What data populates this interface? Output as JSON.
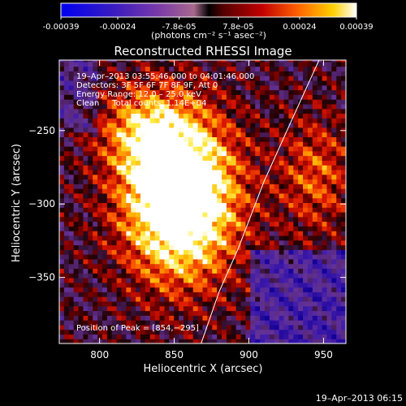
{
  "colorbar": {
    "tick_labels": [
      "-0.00039",
      "-0.00024",
      "-7.8e-05",
      "7.8e-05",
      "0.00024",
      "0.00039"
    ],
    "tick_values": [
      -0.00039,
      -0.00024,
      -7.8e-05,
      7.8e-05,
      0.00024,
      0.00039
    ],
    "range": [
      -0.00039,
      0.00039
    ],
    "units": "(photons cm⁻² s⁻¹ asec⁻²)"
  },
  "chart_data": {
    "type": "heatmap",
    "title": "Reconstructed RHESSI Image",
    "xlabel": "Heliocentric X (arcsec)",
    "ylabel": "Heliocentric Y (arcsec)",
    "xlim": [
      773,
      965
    ],
    "ylim": [
      -395,
      -202
    ],
    "x_ticks": [
      800,
      850,
      900,
      950
    ],
    "x_tick_labels": [
      "800",
      "850",
      "900",
      "950"
    ],
    "y_ticks": [
      -250,
      -300,
      -350
    ],
    "y_tick_labels": [
      "−250",
      "−300",
      "−350"
    ],
    "annotations": [
      "19–Apr–2013 03:55:46.000 to 04:01:46.000",
      "Detectors: 3F 5F 6F 7F 8F 9F, Att 0",
      "Energy Range: 12.0 – 25.0 keV",
      "Clean     Total counts: 1.14E+04"
    ],
    "peak_label": "Position of Peak = [854,−295]",
    "peak": [
      854,
      -295
    ],
    "limb_curve": [
      [
        868,
        -395
      ],
      [
        880,
        -360
      ],
      [
        893,
        -330
      ],
      [
        910,
        -285
      ],
      [
        930,
        -240
      ],
      [
        947,
        -202
      ]
    ],
    "grid": false
  },
  "footer": {
    "timestamp": "19–Apr–2013 06:15"
  }
}
